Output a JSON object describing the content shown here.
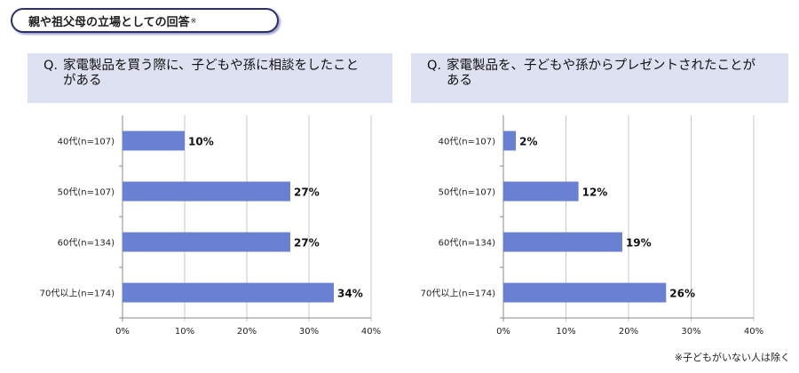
{
  "header": {
    "title": "親や祖父母の立場としての回答",
    "mark": "※"
  },
  "footnote": "※子どもがいない人は除く",
  "chart_data": [
    {
      "type": "bar",
      "orientation": "horizontal",
      "title": "Q. 家電製品を買う際に、子どもや孫に相談をしたことがある",
      "title_prefix": "Q.",
      "title_lines": [
        "家電製品を買う際に、子どもや孫に相談をしたこと",
        "がある"
      ],
      "categories": [
        "40代(n=107)",
        "50代(n=107)",
        "60代(n=134)",
        "70代以上(n=174)"
      ],
      "values": [
        10,
        27,
        27,
        34
      ],
      "value_labels": [
        "10%",
        "27%",
        "27%",
        "34%"
      ],
      "ticks": [
        "0%",
        "10%",
        "20%",
        "30%",
        "40%"
      ],
      "xlim": [
        0,
        40
      ],
      "grid": true,
      "bar_color": "#6a80d3"
    },
    {
      "type": "bar",
      "orientation": "horizontal",
      "title": "Q. 家電製品を、子どもや孫からプレゼントされたことがある",
      "title_prefix": "Q.",
      "title_lines": [
        "家電製品を、子どもや孫からプレゼントされたことが",
        "ある"
      ],
      "categories": [
        "40代(n=107)",
        "50代(n=107)",
        "60代(n=134)",
        "70代以上(n=174)"
      ],
      "values": [
        2,
        12,
        19,
        26
      ],
      "value_labels": [
        "2%",
        "12%",
        "19%",
        "26%"
      ],
      "ticks": [
        "0%",
        "10%",
        "20%",
        "30%",
        "40%"
      ],
      "xlim": [
        0,
        40
      ],
      "grid": true,
      "bar_color": "#6a80d3"
    }
  ]
}
